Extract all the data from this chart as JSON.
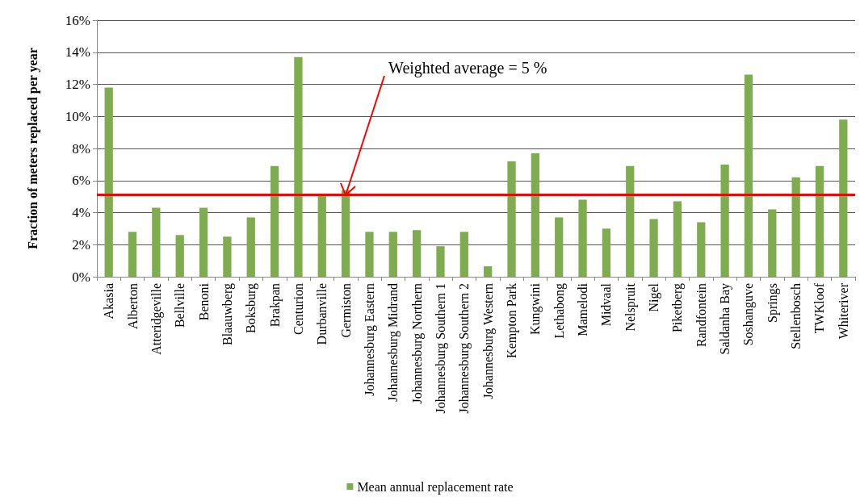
{
  "chart_data": {
    "type": "bar",
    "ylabel": "Fraction of meters replaced per year",
    "categories": [
      "Akasia",
      "Alberton",
      "Atteridgeville",
      "Bellville",
      "Benoni",
      "Blaauwberg",
      "Boksburg",
      "Brakpan",
      "Centurion",
      "Durbanville",
      "Germiston",
      "Johannesburg Eastern",
      "Johannesburg Midrand",
      "Johannesburg Northern",
      "Johannesburg Southern 1",
      "Johannesburg Southern 2",
      "Johannesburg Western",
      "Kempton Park",
      "Kungwini",
      "Lethabong",
      "Mamelodi",
      "Midvaal",
      "Nelspruit",
      "Nigel",
      "Piketberg",
      "Randfontein",
      "Saldanha Bay",
      "Soshanguve",
      "Springs",
      "Stellenbosch",
      "TWKloof",
      "Whiteriver"
    ],
    "series": [
      {
        "name": "Mean annual replacement rate",
        "color": "#7eac4f",
        "values": [
          11.8,
          2.8,
          4.3,
          2.6,
          4.3,
          2.5,
          3.7,
          6.9,
          13.7,
          5.1,
          5.4,
          2.8,
          2.8,
          2.9,
          1.9,
          2.8,
          0.65,
          7.2,
          7.7,
          3.7,
          4.8,
          3.0,
          6.9,
          3.6,
          4.7,
          3.4,
          7.0,
          12.6,
          4.2,
          6.2,
          6.9,
          9.8
        ]
      }
    ],
    "ylim": [
      0,
      16
    ],
    "yticks": [
      {
        "value": 0,
        "label": "0%"
      },
      {
        "value": 2,
        "label": "2%"
      },
      {
        "value": 4,
        "label": "4%"
      },
      {
        "value": 6,
        "label": "6%"
      },
      {
        "value": 8,
        "label": "8%"
      },
      {
        "value": 10,
        "label": "10%"
      },
      {
        "value": 12,
        "label": "12%"
      },
      {
        "value": 14,
        "label": "14%"
      },
      {
        "value": 16,
        "label": "16%"
      }
    ],
    "grid": "y",
    "legend": "bottom",
    "ref_lines": [
      {
        "axis": "y",
        "value": 5.1,
        "color": "#ff0000"
      }
    ],
    "annotations": [
      {
        "text": "Weighted average = 5 %",
        "x": "Germiston",
        "y": 5.1
      }
    ]
  }
}
